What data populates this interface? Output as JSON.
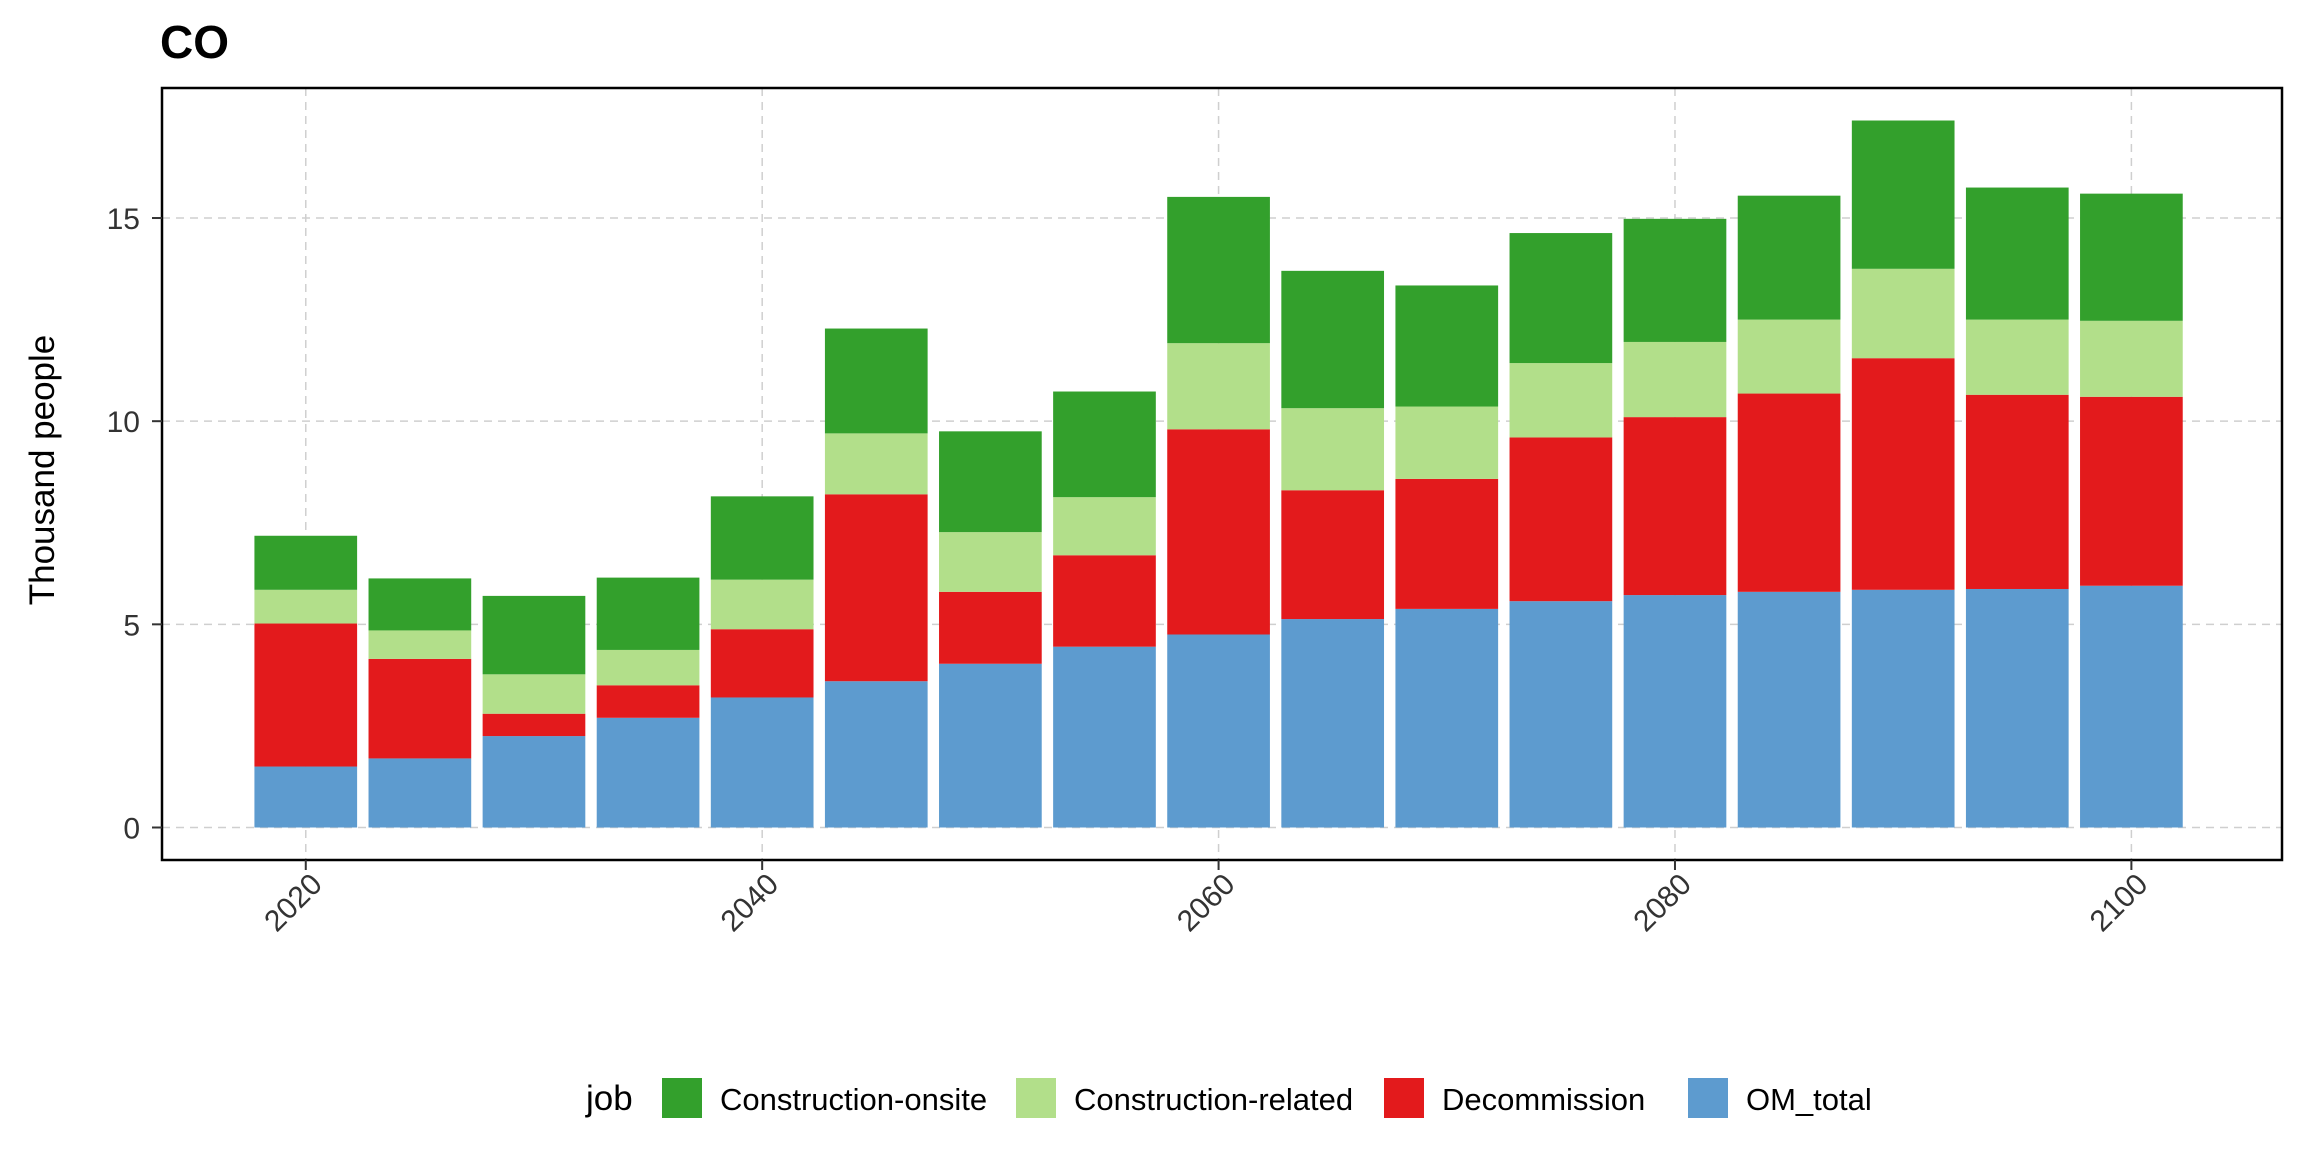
{
  "chart_data": {
    "type": "bar",
    "stacked": true,
    "title": "CO",
    "xlabel": "",
    "ylabel": "Thousand people",
    "x": [
      2020,
      2025,
      2030,
      2035,
      2040,
      2045,
      2050,
      2055,
      2060,
      2065,
      2070,
      2075,
      2080,
      2085,
      2090,
      2095,
      2100
    ],
    "xlim": [
      2013.7,
      2106.6
    ],
    "ylim": [
      -0.8,
      18.2
    ],
    "x_ticks": [
      2020,
      2040,
      2060,
      2080,
      2100
    ],
    "y_ticks": [
      0,
      5,
      10,
      15
    ],
    "grid": true,
    "legend_title": "job",
    "legend_position": "bottom",
    "series": [
      {
        "name": "OM_total",
        "color": "#5D9BCF",
        "values": [
          1.5,
          1.7,
          2.25,
          2.7,
          3.2,
          3.6,
          4.03,
          4.45,
          4.75,
          5.13,
          5.38,
          5.57,
          5.72,
          5.8,
          5.85,
          5.87,
          5.95
        ]
      },
      {
        "name": "Decommission",
        "color": "#E31A1C",
        "values": [
          3.52,
          2.45,
          0.55,
          0.8,
          1.68,
          4.6,
          1.77,
          2.25,
          5.05,
          3.17,
          3.2,
          4.03,
          4.38,
          4.88,
          5.7,
          4.78,
          4.65
        ]
      },
      {
        "name": "Construction-related",
        "color": "#B2DF8A",
        "values": [
          0.83,
          0.7,
          0.97,
          0.87,
          1.22,
          1.5,
          1.47,
          1.43,
          2.12,
          2.02,
          1.78,
          1.83,
          1.85,
          1.82,
          2.2,
          1.85,
          1.87
        ]
      },
      {
        "name": "Construction-onsite",
        "color": "#33A02C",
        "values": [
          1.33,
          1.28,
          1.93,
          1.78,
          2.05,
          2.58,
          2.48,
          2.6,
          3.6,
          3.38,
          2.98,
          3.2,
          3.03,
          3.05,
          3.65,
          3.25,
          3.13
        ]
      }
    ],
    "legend_order": [
      "Construction-onsite",
      "Construction-related",
      "Decommission",
      "OM_total"
    ]
  }
}
